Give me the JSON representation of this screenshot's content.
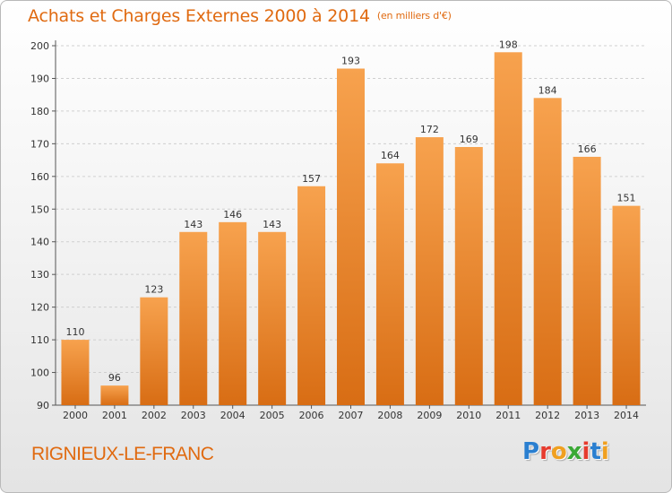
{
  "header": {
    "title": "Achats et Charges Externes 2000 à 2014",
    "subtitle": "(en milliers d'€)"
  },
  "footer": {
    "commune": "RIGNIEUX-LE-FRANC",
    "logo_letters": [
      "P",
      "r",
      "o",
      "x",
      "i",
      "t",
      "i"
    ],
    "logo_colors": [
      "#2a7fd0",
      "#e63b2e",
      "#f0a020",
      "#3aa935",
      "#e63b2e",
      "#2a7fd0",
      "#f0a020"
    ]
  },
  "colors": {
    "bar_top": "#f7a24e",
    "bar_bottom": "#d86d14",
    "grid": "#cfcfcf",
    "title": "#e06a10"
  },
  "chart_data": {
    "type": "bar",
    "title": "Achats et Charges Externes 2000 à 2014",
    "subtitle": "(en milliers d'€)",
    "categories": [
      "2000",
      "2001",
      "2002",
      "2003",
      "2004",
      "2005",
      "2006",
      "2007",
      "2008",
      "2009",
      "2010",
      "2011",
      "2012",
      "2013",
      "2014"
    ],
    "values": [
      110,
      96,
      123,
      143,
      146,
      143,
      157,
      193,
      164,
      172,
      169,
      198,
      184,
      166,
      151
    ],
    "ylim": [
      90,
      200
    ],
    "yticks": [
      90,
      100,
      110,
      120,
      130,
      140,
      150,
      160,
      170,
      180,
      190,
      200
    ],
    "grid": true,
    "legend": "none"
  }
}
